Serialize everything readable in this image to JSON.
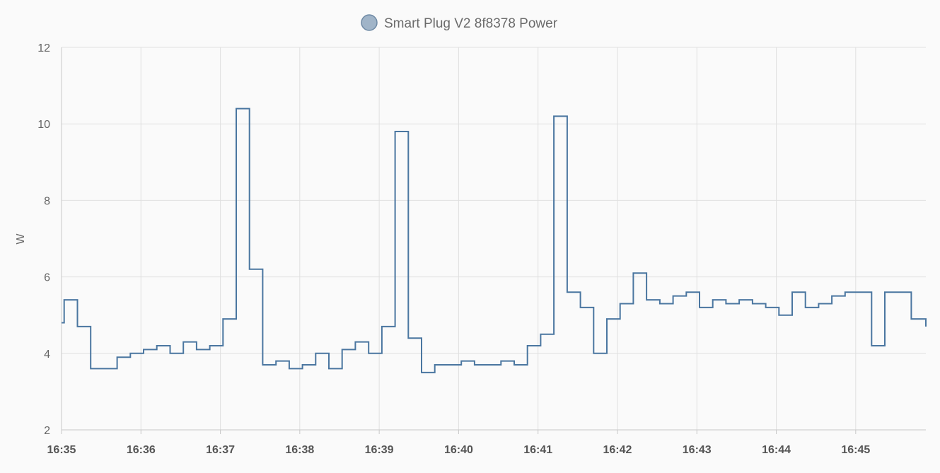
{
  "chart_data": {
    "type": "line",
    "step": true,
    "title": "",
    "ylabel": "W",
    "ylim": [
      2,
      12
    ],
    "yticks": [
      "2",
      "4",
      "6",
      "8",
      "10",
      "12"
    ],
    "xlim": [
      "16:35:00",
      "16:45:53"
    ],
    "xticks": [
      "16:35",
      "16:36",
      "16:37",
      "16:38",
      "16:39",
      "16:40",
      "16:41",
      "16:42",
      "16:43",
      "16:44",
      "16:45"
    ],
    "grid": true,
    "legend": {
      "position": "top-center",
      "entries": [
        "Smart Plug V2 8f8378 Power"
      ]
    },
    "colors": {
      "series": "#4a76a0",
      "legend_fill": "#a0b4c8",
      "grid": "#e0e0e0",
      "axis": "#c8c8c8"
    },
    "series": [
      {
        "name": "Smart Plug V2 8f8378 Power",
        "x": [
          "16:35:00",
          "16:35:02",
          "16:35:12",
          "16:35:22",
          "16:35:42",
          "16:35:52",
          "16:36:02",
          "16:36:12",
          "16:36:22",
          "16:36:32",
          "16:36:42",
          "16:36:52",
          "16:37:02",
          "16:37:12",
          "16:37:22",
          "16:37:32",
          "16:37:42",
          "16:37:52",
          "16:38:02",
          "16:38:12",
          "16:38:22",
          "16:38:32",
          "16:38:42",
          "16:38:52",
          "16:39:02",
          "16:39:12",
          "16:39:22",
          "16:39:32",
          "16:39:42",
          "16:39:52",
          "16:40:02",
          "16:40:12",
          "16:40:22",
          "16:40:32",
          "16:40:42",
          "16:40:52",
          "16:41:02",
          "16:41:12",
          "16:41:22",
          "16:41:32",
          "16:41:42",
          "16:41:52",
          "16:42:02",
          "16:42:12",
          "16:42:22",
          "16:42:32",
          "16:42:42",
          "16:42:52",
          "16:43:02",
          "16:43:12",
          "16:43:22",
          "16:43:32",
          "16:43:42",
          "16:43:52",
          "16:44:02",
          "16:44:12",
          "16:44:22",
          "16:44:32",
          "16:44:42",
          "16:44:52",
          "16:45:02",
          "16:45:12",
          "16:45:22",
          "16:45:42",
          "16:45:53"
        ],
        "values": [
          4.8,
          5.4,
          4.7,
          3.6,
          3.9,
          4.0,
          4.1,
          4.2,
          4.0,
          4.3,
          4.1,
          4.2,
          4.9,
          10.4,
          6.2,
          3.7,
          3.8,
          3.6,
          3.7,
          4.0,
          3.6,
          4.1,
          4.3,
          4.0,
          4.7,
          9.8,
          4.4,
          3.5,
          3.7,
          3.7,
          3.8,
          3.7,
          3.7,
          3.8,
          3.7,
          4.2,
          4.5,
          10.2,
          5.6,
          5.2,
          4.0,
          4.9,
          5.3,
          6.1,
          5.4,
          5.3,
          5.5,
          5.6,
          5.2,
          5.4,
          5.3,
          5.4,
          5.3,
          5.2,
          5.0,
          5.6,
          5.2,
          5.3,
          5.5,
          5.6,
          5.6,
          4.2,
          5.6,
          4.9,
          4.7
        ]
      }
    ]
  }
}
